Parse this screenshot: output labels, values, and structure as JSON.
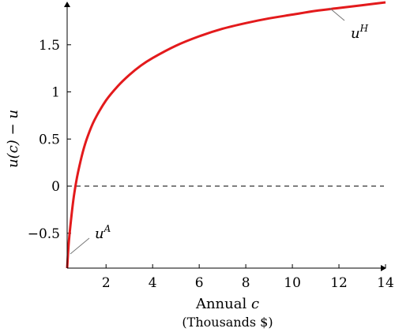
{
  "chart_data": {
    "type": "line",
    "xlabel_prefix": "Annual",
    "xlabel_var": "c",
    "xlabel_unit": "(Thousands $)",
    "ylabel": "u(c) − u",
    "xlim": [
      0.33,
      14
    ],
    "ylim": [
      -0.87,
      1.95
    ],
    "x_ticks": [
      2,
      4,
      6,
      8,
      10,
      12,
      14
    ],
    "y_ticks": [
      -0.5,
      0,
      0.5,
      1,
      1.5
    ],
    "x_tick_labels": [
      "2",
      "4",
      "6",
      "8",
      "10",
      "12",
      "14"
    ],
    "y_tick_labels": [
      "−0.5",
      "0",
      "0.5",
      "1",
      "1.5"
    ],
    "grid": false,
    "reference_line": {
      "y": 0,
      "style": "dashed"
    },
    "series": [
      {
        "color": "#e31a1c",
        "x": [
          0.33,
          0.4,
          0.5,
          0.6,
          0.7,
          0.8,
          1,
          1.2,
          1.5,
          2,
          2.5,
          3,
          3.5,
          4,
          5,
          6,
          7,
          8,
          9,
          10,
          11,
          12,
          13,
          14
        ],
        "y": [
          -0.87,
          -0.6,
          -0.35,
          -0.14,
          0.02,
          0.15,
          0.36,
          0.52,
          0.7,
          0.91,
          1.06,
          1.18,
          1.28,
          1.36,
          1.49,
          1.59,
          1.67,
          1.73,
          1.78,
          1.82,
          1.86,
          1.89,
          1.92,
          1.95
        ]
      }
    ],
    "annotations": [
      {
        "text": "u",
        "sup": "H",
        "at_x": 13.2
      },
      {
        "text": "u",
        "sup": "A",
        "at_x": 0.35
      }
    ]
  }
}
